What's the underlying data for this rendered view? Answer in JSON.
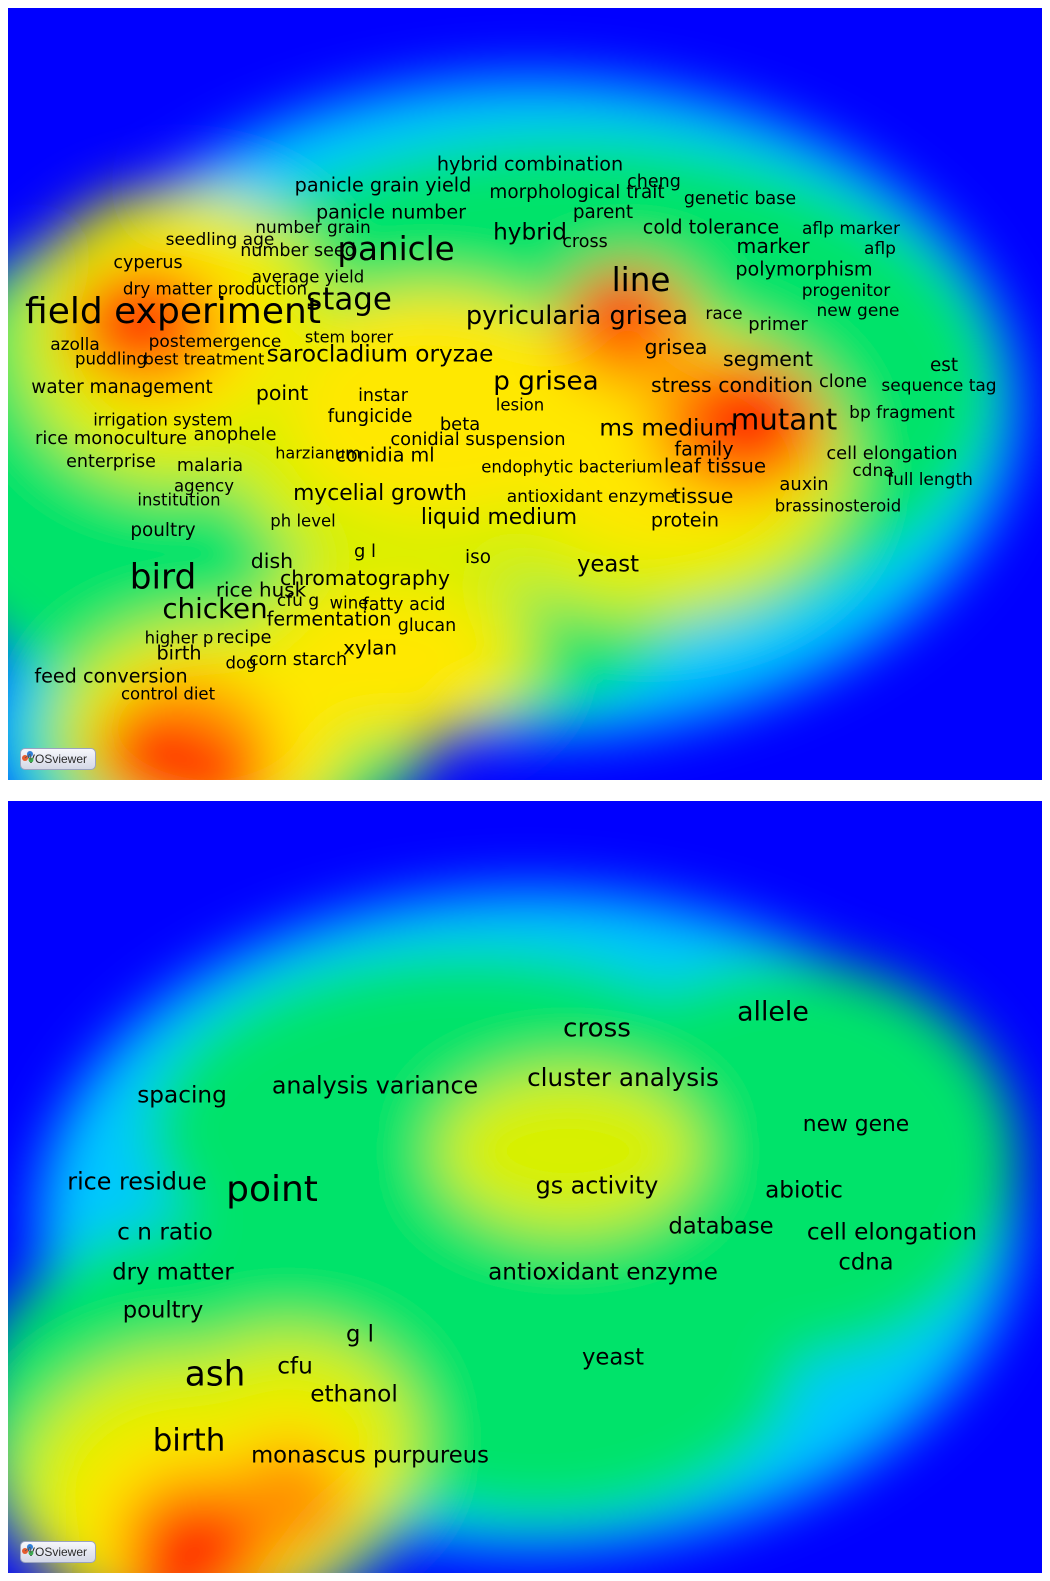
{
  "app": {
    "badge_label": "VOSviewer"
  },
  "colors": {
    "background": "#0000ff",
    "scale": [
      "#0000ff",
      "#00c8ff",
      "#00e36b",
      "#d8f000",
      "#ffe800",
      "#ff9000",
      "#ff2200"
    ]
  },
  "chart_data": [
    {
      "type": "heatmap",
      "title": "",
      "grid": false,
      "terms": [
        {
          "text": "field experiment",
          "weight": 1.0,
          "x": 0.16,
          "y": 0.395,
          "density": 0.97
        },
        {
          "text": "panicle",
          "weight": 0.9,
          "x": 0.375,
          "y": 0.315,
          "density": 0.72
        },
        {
          "text": "stage",
          "weight": 0.85,
          "x": 0.33,
          "y": 0.38,
          "density": 0.75
        },
        {
          "text": "line",
          "weight": 0.9,
          "x": 0.612,
          "y": 0.355,
          "density": 0.9
        },
        {
          "text": "bird",
          "weight": 0.95,
          "x": 0.15,
          "y": 0.74,
          "density": 1.0
        },
        {
          "text": "chicken",
          "weight": 0.75,
          "x": 0.2,
          "y": 0.78,
          "density": 1.0
        },
        {
          "text": "mutant",
          "weight": 0.8,
          "x": 0.75,
          "y": 0.535,
          "density": 1.0
        },
        {
          "text": "ms medium",
          "weight": 0.6,
          "x": 0.638,
          "y": 0.545,
          "density": 0.95
        },
        {
          "text": "p grisea",
          "weight": 0.7,
          "x": 0.52,
          "y": 0.485,
          "density": 0.7
        },
        {
          "text": "pyricularia grisea",
          "weight": 0.68,
          "x": 0.55,
          "y": 0.4,
          "density": 0.72
        },
        {
          "text": "sarocladium oryzae",
          "weight": 0.6,
          "x": 0.36,
          "y": 0.45,
          "density": 0.7
        },
        {
          "text": "hybrid",
          "weight": 0.6,
          "x": 0.505,
          "y": 0.292,
          "density": 0.6
        },
        {
          "text": "marker",
          "weight": 0.5,
          "x": 0.74,
          "y": 0.31,
          "density": 0.6
        },
        {
          "text": "polymorphism",
          "weight": 0.45,
          "x": 0.77,
          "y": 0.34,
          "density": 0.55
        },
        {
          "text": "grisea",
          "weight": 0.5,
          "x": 0.646,
          "y": 0.44,
          "density": 0.75
        },
        {
          "text": "segment",
          "weight": 0.5,
          "x": 0.735,
          "y": 0.456,
          "density": 0.72
        },
        {
          "text": "stress condition",
          "weight": 0.5,
          "x": 0.7,
          "y": 0.49,
          "density": 0.82
        },
        {
          "text": "leaf tissue",
          "weight": 0.48,
          "x": 0.684,
          "y": 0.594,
          "density": 0.92
        },
        {
          "text": "tissue",
          "weight": 0.5,
          "x": 0.672,
          "y": 0.633,
          "density": 0.8
        },
        {
          "text": "family",
          "weight": 0.45,
          "x": 0.673,
          "y": 0.572,
          "density": 0.85
        },
        {
          "text": "protein",
          "weight": 0.45,
          "x": 0.655,
          "y": 0.664,
          "density": 0.7
        },
        {
          "text": "yeast",
          "weight": 0.58,
          "x": 0.58,
          "y": 0.722,
          "density": 0.55
        },
        {
          "text": "liquid medium",
          "weight": 0.55,
          "x": 0.475,
          "y": 0.66,
          "density": 0.75
        },
        {
          "text": "mycelial growth",
          "weight": 0.55,
          "x": 0.36,
          "y": 0.63,
          "density": 0.75
        },
        {
          "text": "chromatography",
          "weight": 0.5,
          "x": 0.345,
          "y": 0.74,
          "density": 0.85
        },
        {
          "text": "rice husk",
          "weight": 0.48,
          "x": 0.245,
          "y": 0.755,
          "density": 0.82
        },
        {
          "text": "dish",
          "weight": 0.5,
          "x": 0.255,
          "y": 0.718,
          "density": 0.82
        },
        {
          "text": "fermentation",
          "weight": 0.45,
          "x": 0.31,
          "y": 0.793,
          "density": 0.8
        },
        {
          "text": "xylan",
          "weight": 0.48,
          "x": 0.35,
          "y": 0.83,
          "density": 0.6
        },
        {
          "text": "birth",
          "weight": 0.45,
          "x": 0.165,
          "y": 0.837,
          "density": 0.92
        },
        {
          "text": "recipe",
          "weight": 0.4,
          "x": 0.228,
          "y": 0.816,
          "density": 0.92
        },
        {
          "text": "feed conversion",
          "weight": 0.45,
          "x": 0.1,
          "y": 0.867,
          "density": 0.62
        },
        {
          "text": "corn starch",
          "weight": 0.38,
          "x": 0.28,
          "y": 0.845,
          "density": 0.7
        },
        {
          "text": "glucan",
          "weight": 0.38,
          "x": 0.405,
          "y": 0.8,
          "density": 0.55
        },
        {
          "text": "fatty acid",
          "weight": 0.38,
          "x": 0.383,
          "y": 0.773,
          "density": 0.65
        },
        {
          "text": "iso",
          "weight": 0.42,
          "x": 0.455,
          "y": 0.712,
          "density": 0.6
        },
        {
          "text": "g l",
          "weight": 0.4,
          "x": 0.345,
          "y": 0.705,
          "density": 0.75
        },
        {
          "text": "conidia ml",
          "weight": 0.45,
          "x": 0.365,
          "y": 0.58,
          "density": 0.7
        },
        {
          "text": "conidial suspension",
          "weight": 0.4,
          "x": 0.455,
          "y": 0.56,
          "density": 0.75
        },
        {
          "text": "fungicide",
          "weight": 0.42,
          "x": 0.35,
          "y": 0.53,
          "density": 0.65
        },
        {
          "text": "point",
          "weight": 0.5,
          "x": 0.265,
          "y": 0.5,
          "density": 0.7
        },
        {
          "text": "instar",
          "weight": 0.38,
          "x": 0.363,
          "y": 0.502,
          "density": 0.65
        },
        {
          "text": "beta",
          "weight": 0.4,
          "x": 0.437,
          "y": 0.54,
          "density": 0.7
        },
        {
          "text": "water management",
          "weight": 0.42,
          "x": 0.11,
          "y": 0.492,
          "density": 0.62
        },
        {
          "text": "rice monoculture",
          "weight": 0.4,
          "x": 0.1,
          "y": 0.558,
          "density": 0.6
        },
        {
          "text": "anophele",
          "weight": 0.4,
          "x": 0.22,
          "y": 0.553,
          "density": 0.7
        },
        {
          "text": "enterprise",
          "weight": 0.38,
          "x": 0.1,
          "y": 0.588,
          "density": 0.62
        },
        {
          "text": "malaria",
          "weight": 0.38,
          "x": 0.195,
          "y": 0.593,
          "density": 0.7
        },
        {
          "text": "poultry",
          "weight": 0.42,
          "x": 0.15,
          "y": 0.678,
          "density": 0.7
        },
        {
          "text": "azolla",
          "weight": 0.36,
          "x": 0.065,
          "y": 0.436,
          "density": 0.7
        },
        {
          "text": "puddling",
          "weight": 0.34,
          "x": 0.1,
          "y": 0.456,
          "density": 0.75
        },
        {
          "text": "postemergence",
          "weight": 0.36,
          "x": 0.2,
          "y": 0.432,
          "density": 0.92
        },
        {
          "text": "best treatment",
          "weight": 0.32,
          "x": 0.19,
          "y": 0.456,
          "density": 0.9
        },
        {
          "text": "dry matter production",
          "weight": 0.35,
          "x": 0.2,
          "y": 0.365,
          "density": 0.7
        },
        {
          "text": "cyperus",
          "weight": 0.38,
          "x": 0.135,
          "y": 0.33,
          "density": 0.55
        },
        {
          "text": "seedling age",
          "weight": 0.36,
          "x": 0.205,
          "y": 0.3,
          "density": 0.6
        },
        {
          "text": "number seed",
          "weight": 0.38,
          "x": 0.28,
          "y": 0.315,
          "density": 0.6
        },
        {
          "text": "average yield",
          "weight": 0.34,
          "x": 0.29,
          "y": 0.35,
          "density": 0.6
        },
        {
          "text": "number grain",
          "weight": 0.36,
          "x": 0.295,
          "y": 0.285,
          "density": 0.6
        },
        {
          "text": "panicle number",
          "weight": 0.45,
          "x": 0.37,
          "y": 0.265,
          "density": 0.6
        },
        {
          "text": "panicle grain yield",
          "weight": 0.45,
          "x": 0.363,
          "y": 0.23,
          "density": 0.55
        },
        {
          "text": "hybrid combination",
          "weight": 0.45,
          "x": 0.505,
          "y": 0.203,
          "density": 0.5
        },
        {
          "text": "morphological trait",
          "weight": 0.42,
          "x": 0.55,
          "y": 0.24,
          "density": 0.5
        },
        {
          "text": "parent",
          "weight": 0.42,
          "x": 0.575,
          "y": 0.265,
          "density": 0.55
        },
        {
          "text": "cheng",
          "weight": 0.38,
          "x": 0.625,
          "y": 0.225,
          "density": 0.5
        },
        {
          "text": "genetic base",
          "weight": 0.38,
          "x": 0.708,
          "y": 0.247,
          "density": 0.55
        },
        {
          "text": "cold tolerance",
          "weight": 0.45,
          "x": 0.68,
          "y": 0.285,
          "density": 0.6
        },
        {
          "text": "cross",
          "weight": 0.38,
          "x": 0.558,
          "y": 0.303,
          "density": 0.6
        },
        {
          "text": "aflp marker",
          "weight": 0.36,
          "x": 0.815,
          "y": 0.286,
          "density": 0.5
        },
        {
          "text": "aflp",
          "weight": 0.36,
          "x": 0.843,
          "y": 0.312,
          "density": 0.45
        },
        {
          "text": "progenitor",
          "weight": 0.36,
          "x": 0.81,
          "y": 0.366,
          "density": 0.5
        },
        {
          "text": "new gene",
          "weight": 0.36,
          "x": 0.822,
          "y": 0.392,
          "density": 0.5
        },
        {
          "text": "race",
          "weight": 0.36,
          "x": 0.692,
          "y": 0.397,
          "density": 0.65
        },
        {
          "text": "primer",
          "weight": 0.4,
          "x": 0.745,
          "y": 0.41,
          "density": 0.6
        },
        {
          "text": "est",
          "weight": 0.42,
          "x": 0.905,
          "y": 0.464,
          "density": 0.45
        },
        {
          "text": "clone",
          "weight": 0.4,
          "x": 0.808,
          "y": 0.485,
          "density": 0.55
        },
        {
          "text": "sequence tag",
          "weight": 0.36,
          "x": 0.9,
          "y": 0.49,
          "density": 0.45
        },
        {
          "text": "bp fragment",
          "weight": 0.36,
          "x": 0.865,
          "y": 0.525,
          "density": 0.5
        },
        {
          "text": "cell elongation",
          "weight": 0.4,
          "x": 0.855,
          "y": 0.578,
          "density": 0.55
        },
        {
          "text": "cdna",
          "weight": 0.36,
          "x": 0.837,
          "y": 0.6,
          "density": 0.55
        },
        {
          "text": "full length",
          "weight": 0.36,
          "x": 0.892,
          "y": 0.612,
          "density": 0.45
        },
        {
          "text": "auxin",
          "weight": 0.4,
          "x": 0.77,
          "y": 0.618,
          "density": 0.62
        },
        {
          "text": "brassinosteroid",
          "weight": 0.34,
          "x": 0.803,
          "y": 0.646,
          "density": 0.55
        },
        {
          "text": "antioxidant enzyme",
          "weight": 0.36,
          "x": 0.564,
          "y": 0.634,
          "density": 0.55
        },
        {
          "text": "endophytic bacterium",
          "weight": 0.34,
          "x": 0.545,
          "y": 0.596,
          "density": 0.6
        },
        {
          "text": "lesion",
          "weight": 0.34,
          "x": 0.495,
          "y": 0.515,
          "density": 0.7
        },
        {
          "text": "agency",
          "weight": 0.34,
          "x": 0.19,
          "y": 0.62,
          "density": 0.7
        },
        {
          "text": "institution",
          "weight": 0.34,
          "x": 0.165,
          "y": 0.638,
          "density": 0.68
        },
        {
          "text": "irrigation system",
          "weight": 0.34,
          "x": 0.15,
          "y": 0.535,
          "density": 0.65
        },
        {
          "text": "ph level",
          "weight": 0.34,
          "x": 0.285,
          "y": 0.666,
          "density": 0.75
        },
        {
          "text": "stem borer",
          "weight": 0.32,
          "x": 0.33,
          "y": 0.428,
          "density": 0.72
        },
        {
          "text": "harzianum",
          "weight": 0.32,
          "x": 0.3,
          "y": 0.578,
          "density": 0.72
        },
        {
          "text": "higher p",
          "weight": 0.34,
          "x": 0.165,
          "y": 0.818,
          "density": 0.85
        },
        {
          "text": "dog",
          "weight": 0.34,
          "x": 0.225,
          "y": 0.85,
          "density": 0.85
        },
        {
          "text": "control diet",
          "weight": 0.34,
          "x": 0.155,
          "y": 0.89,
          "density": 0.6
        },
        {
          "text": "cfu g",
          "weight": 0.36,
          "x": 0.28,
          "y": 0.768,
          "density": 0.82
        },
        {
          "text": "wine",
          "weight": 0.34,
          "x": 0.33,
          "y": 0.772,
          "density": 0.8
        }
      ]
    },
    {
      "type": "heatmap",
      "title": "",
      "grid": false,
      "terms": [
        {
          "text": "point",
          "weight": 1.0,
          "x": 0.255,
          "y": 0.505,
          "density": 0.7
        },
        {
          "text": "ash",
          "weight": 0.95,
          "x": 0.2,
          "y": 0.745,
          "density": 1.0
        },
        {
          "text": "birth",
          "weight": 0.85,
          "x": 0.175,
          "y": 0.83,
          "density": 0.95
        },
        {
          "text": "cross",
          "weight": 0.7,
          "x": 0.57,
          "y": 0.295,
          "density": 0.55
        },
        {
          "text": "allele",
          "weight": 0.72,
          "x": 0.74,
          "y": 0.275,
          "density": 0.55
        },
        {
          "text": "cluster analysis",
          "weight": 0.65,
          "x": 0.595,
          "y": 0.36,
          "density": 0.5
        },
        {
          "text": "analysis variance",
          "weight": 0.62,
          "x": 0.355,
          "y": 0.37,
          "density": 0.55
        },
        {
          "text": "spacing",
          "weight": 0.6,
          "x": 0.168,
          "y": 0.382,
          "density": 0.45
        },
        {
          "text": "new gene",
          "weight": 0.55,
          "x": 0.82,
          "y": 0.42,
          "density": 0.45
        },
        {
          "text": "rice residue",
          "weight": 0.62,
          "x": 0.125,
          "y": 0.495,
          "density": 0.55
        },
        {
          "text": "gs activity",
          "weight": 0.62,
          "x": 0.57,
          "y": 0.5,
          "density": 0.5
        },
        {
          "text": "abiotic",
          "weight": 0.6,
          "x": 0.77,
          "y": 0.505,
          "density": 0.55
        },
        {
          "text": "c n ratio",
          "weight": 0.6,
          "x": 0.152,
          "y": 0.56,
          "density": 0.58
        },
        {
          "text": "database",
          "weight": 0.58,
          "x": 0.69,
          "y": 0.552,
          "density": 0.55
        },
        {
          "text": "cell elongation",
          "weight": 0.6,
          "x": 0.855,
          "y": 0.56,
          "density": 0.55
        },
        {
          "text": "cdna",
          "weight": 0.58,
          "x": 0.83,
          "y": 0.598,
          "density": 0.55
        },
        {
          "text": "dry matter",
          "weight": 0.58,
          "x": 0.16,
          "y": 0.612,
          "density": 0.6
        },
        {
          "text": "antioxidant enzyme",
          "weight": 0.6,
          "x": 0.575,
          "y": 0.612,
          "density": 0.5
        },
        {
          "text": "poultry",
          "weight": 0.58,
          "x": 0.15,
          "y": 0.66,
          "density": 0.62
        },
        {
          "text": "g l",
          "weight": 0.58,
          "x": 0.34,
          "y": 0.692,
          "density": 0.75
        },
        {
          "text": "yeast",
          "weight": 0.58,
          "x": 0.585,
          "y": 0.722,
          "density": 0.55
        },
        {
          "text": "cfu",
          "weight": 0.6,
          "x": 0.278,
          "y": 0.733,
          "density": 0.9
        },
        {
          "text": "ethanol",
          "weight": 0.6,
          "x": 0.335,
          "y": 0.77,
          "density": 0.8
        },
        {
          "text": "monascus purpureus",
          "weight": 0.58,
          "x": 0.35,
          "y": 0.848,
          "density": 0.62
        }
      ]
    }
  ]
}
